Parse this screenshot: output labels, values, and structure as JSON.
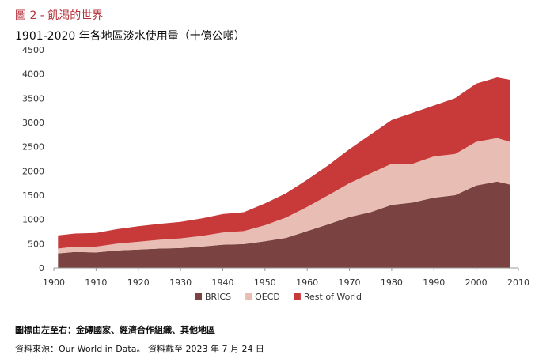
{
  "figure_label": "圖 2 - 飢渴的世界",
  "footnote": "圖標由左至右：金磚國家、經濟合作組織、其他地區",
  "source": {
    "prefix": "資料來源：",
    "name": "Our World in Data",
    "suffix": "。 資料截至 2023 年 7 月 24 日"
  },
  "chart_data": {
    "type": "area",
    "stacked": true,
    "title": "1901-2020 年各地區淡水使用量（十億公噸）",
    "xlabel": "",
    "ylabel": "",
    "xlim": [
      1900,
      2010
    ],
    "ylim": [
      0,
      4500
    ],
    "x_ticks": [
      1900,
      1910,
      1920,
      1930,
      1940,
      1950,
      1960,
      1970,
      1980,
      1990,
      2000,
      2010
    ],
    "y_ticks": [
      0,
      500,
      1000,
      1500,
      2000,
      2500,
      3000,
      3500,
      4000,
      4500
    ],
    "grid": false,
    "legend_position": "bottom",
    "x": [
      1901,
      1905,
      1910,
      1915,
      1920,
      1925,
      1930,
      1935,
      1940,
      1945,
      1950,
      1955,
      1960,
      1965,
      1970,
      1975,
      1980,
      1985,
      1990,
      1995,
      2000,
      2005,
      2008
    ],
    "series": [
      {
        "name": "BRICS",
        "color": "#7a4240",
        "values": [
          300,
          330,
          320,
          360,
          380,
          400,
          410,
          440,
          480,
          490,
          550,
          620,
          760,
          900,
          1050,
          1150,
          1300,
          1350,
          1450,
          1500,
          1700,
          1780,
          1720
        ]
      },
      {
        "name": "OECD",
        "color": "#e8beb4",
        "values": [
          100,
          110,
          120,
          140,
          160,
          180,
          200,
          220,
          250,
          270,
          330,
          420,
          500,
          600,
          700,
          800,
          850,
          800,
          850,
          850,
          900,
          900,
          880
        ]
      },
      {
        "name": "Rest of World",
        "color": "#c8393a",
        "values": [
          270,
          270,
          280,
          300,
          320,
          330,
          340,
          360,
          380,
          390,
          450,
          500,
          560,
          620,
          700,
          800,
          900,
          1050,
          1050,
          1150,
          1200,
          1250,
          1280
        ]
      }
    ]
  }
}
